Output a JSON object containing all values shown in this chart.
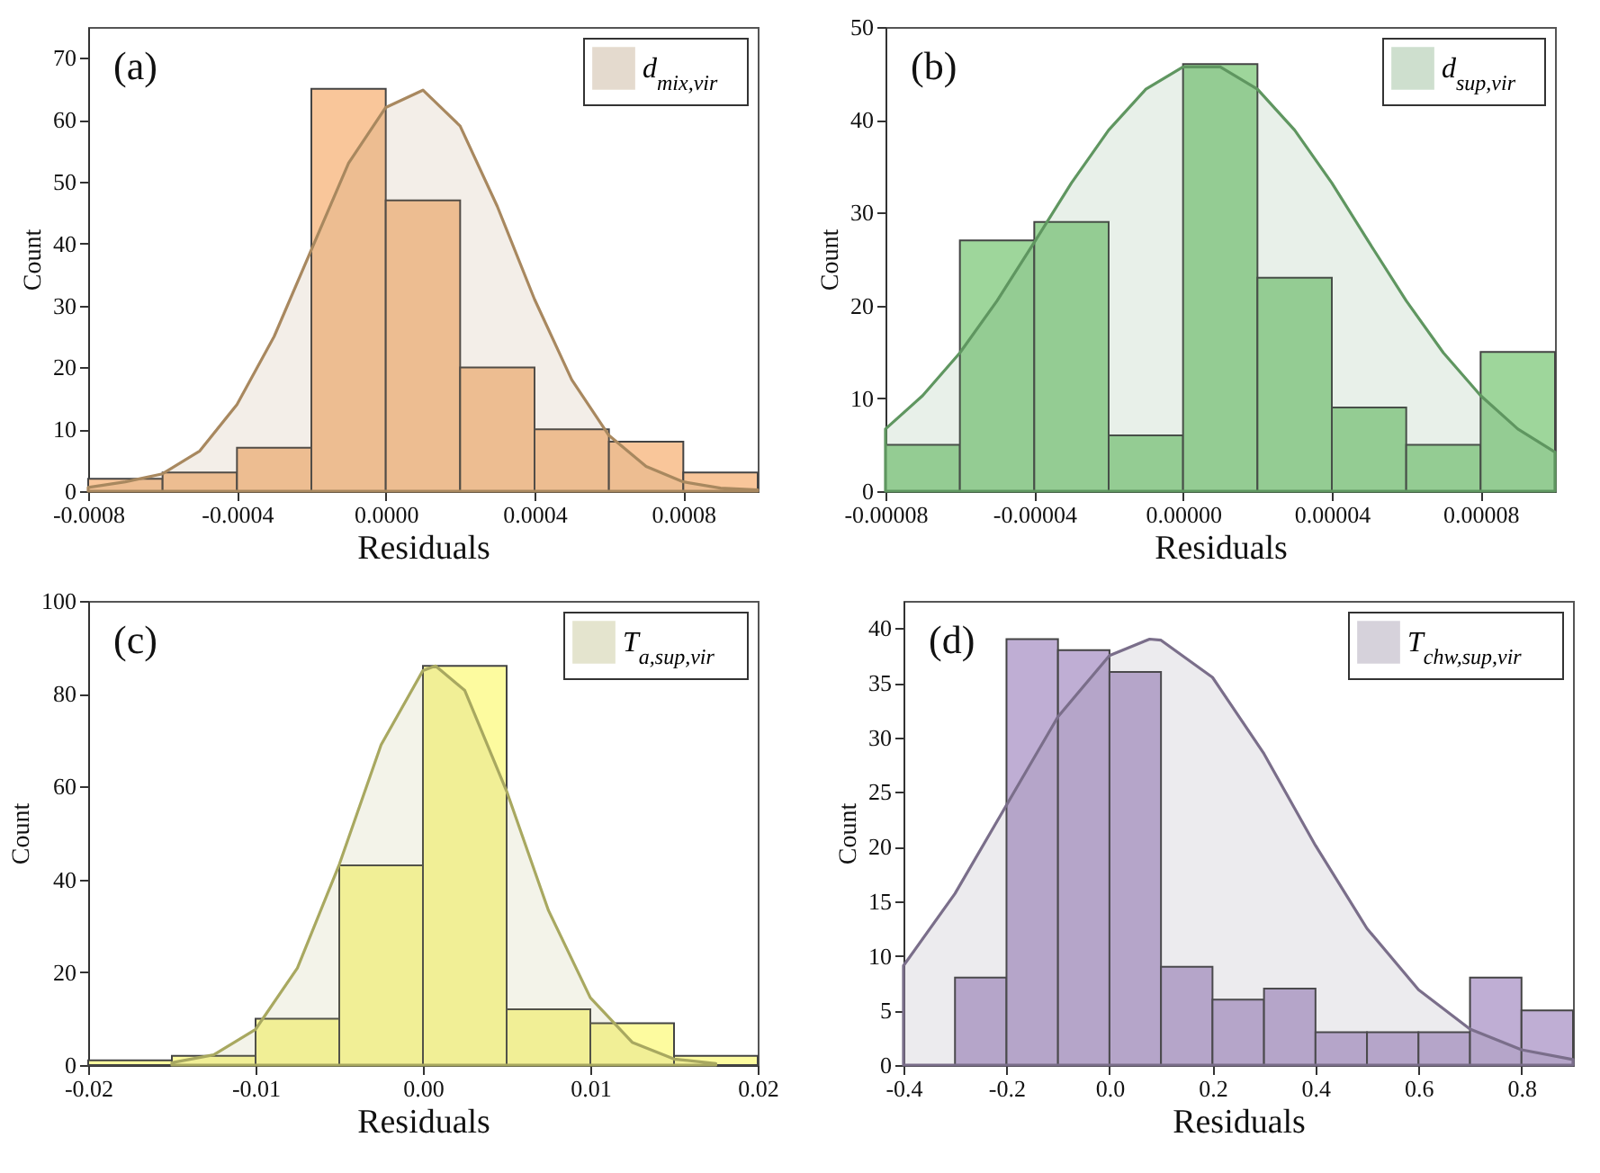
{
  "chart_data": [
    {
      "type": "histogram",
      "xlabel": "Residuals",
      "ylabel": "Count",
      "annotations": [
        "(a)"
      ],
      "legend": "top right",
      "bins": [
        -0.0008,
        -0.0006,
        -0.0004,
        -0.0002,
        0,
        0.0002,
        0.0004,
        0.0006,
        0.0008,
        0.001
      ],
      "series": [
        {
          "color": "#f9c69a",
          "values": [
            2,
            3,
            7,
            65,
            47,
            20,
            10,
            8,
            3
          ]
        },
        {
          "type": "area",
          "name": "d$_{mix,vir}$",
          "color": "#a8885f",
          "x": [
            -0.0008,
            -0.0007,
            -0.0006,
            -0.0005,
            -0.0004,
            -0.0003,
            -0.0002,
            -0.0001,
            0,
            0.0001,
            0.0002,
            0.0003,
            0.0004,
            0.0005,
            0.0006,
            0.0007,
            0.0008,
            0.0009,
            0.001
          ],
          "values": [
            0.6,
            1.5,
            2.8,
            6.5,
            14,
            25,
            39,
            53,
            62,
            64.8,
            59,
            46,
            31,
            18,
            9,
            4,
            1.5,
            0.5,
            0.2
          ]
        }
      ],
      "xlim": [
        -0.0008,
        0.001
      ],
      "xticks": [
        -0.0008,
        -0.0004,
        {
          "value": 0,
          "label": "0.0000"
        },
        0.0004,
        0.0008
      ],
      "ylim": [
        0,
        75
      ],
      "yticks": [
        0,
        10,
        20,
        30,
        40,
        50,
        60,
        70
      ]
    },
    {
      "type": "histogram",
      "xlabel": "Residuals",
      "ylabel": "Count",
      "annotations": [
        "(b)"
      ],
      "legend": "top right",
      "bins": [
        -8e-05,
        -6e-05,
        -4e-05,
        -2e-05,
        0,
        2e-05,
        4e-05,
        6e-05,
        8e-05,
        0.0001
      ],
      "series": [
        {
          "color": "#9ed69b",
          "values": [
            5,
            27,
            29,
            6,
            46,
            23,
            9,
            5,
            15
          ]
        },
        {
          "type": "area",
          "name": "d$_{sup,vir}$",
          "color": "#5f9660",
          "x": [
            -8e-05,
            -7e-05,
            -6e-05,
            -5e-05,
            -4e-05,
            -3e-05,
            -2e-05,
            -1e-05,
            0,
            1e-05,
            2e-05,
            3e-05,
            4e-05,
            5e-05,
            6e-05,
            7e-05,
            8e-05,
            9e-05,
            0.0001
          ],
          "values": [
            6.7,
            10.3,
            14.9,
            20.5,
            26.8,
            33.2,
            38.9,
            43.3,
            45.7,
            45.7,
            43.3,
            38.9,
            33.2,
            26.8,
            20.5,
            14.9,
            10.3,
            6.7,
            4.2
          ]
        }
      ],
      "xlim": [
        -8e-05,
        0.0001
      ],
      "xticks": [
        {
          "value": -8e-05,
          "label": "-0.00008"
        },
        {
          "value": -4e-05,
          "label": "-0.00004"
        },
        {
          "value": 0,
          "label": "0.00000"
        },
        {
          "value": 4e-05,
          "label": "0.00004"
        },
        {
          "value": 8e-05,
          "label": "0.00008"
        }
      ],
      "ylim": [
        0,
        50
      ],
      "yticks": [
        0,
        10,
        20,
        30,
        40,
        50
      ]
    },
    {
      "type": "histogram",
      "xlabel": "Residuals",
      "ylabel": "Count",
      "annotations": [
        "(c)"
      ],
      "legend": "top right",
      "bins": [
        -0.02,
        -0.015,
        -0.01,
        -0.005,
        0,
        0.005,
        0.01,
        0.015,
        0.02
      ],
      "series": [
        {
          "color": "#fdfb9f",
          "values": [
            1,
            2,
            10,
            43,
            86,
            12,
            9,
            2
          ]
        },
        {
          "type": "area",
          "name": "T$_{a,sup,vir}$",
          "color": "#a8a860",
          "x": [
            -0.015,
            -0.0125,
            -0.01,
            -0.0075,
            -0.005,
            -0.0025,
            0,
            0.00075,
            0.0025,
            0.005,
            0.0075,
            0.01,
            0.0125,
            0.015,
            0.0175
          ],
          "values": [
            0.5,
            2.2,
            7.7,
            20.9,
            43.2,
            69,
            85,
            86,
            80.7,
            59,
            33.3,
            14.5,
            4.9,
            1.3,
            0.3
          ]
        }
      ],
      "xlim": [
        -0.02,
        0.02
      ],
      "xticks": [
        -0.02,
        -0.01,
        {
          "value": 0,
          "label": "0.00"
        },
        0.01,
        0.02
      ],
      "ylim": [
        0,
        100
      ],
      "yticks": [
        0,
        20,
        40,
        60,
        80,
        100
      ]
    },
    {
      "type": "histogram",
      "xlabel": "Residuals",
      "ylabel": "Count",
      "annotations": [
        "(d)"
      ],
      "legend": "top right",
      "bins": [
        -0.3,
        -0.2,
        -0.1,
        0,
        0.1,
        0.2,
        0.3,
        0.4,
        0.5,
        0.6,
        0.7,
        0.8,
        0.9
      ],
      "series": [
        {
          "color": "#bfaed4",
          "values": [
            8,
            39,
            38,
            36,
            9,
            6,
            7,
            3,
            3,
            3,
            8,
            5
          ]
        },
        {
          "type": "area",
          "name": "T$_{chw,sup,vir}$",
          "color": "#7a6e8a",
          "x": [
            -0.4,
            -0.3,
            -0.2,
            -0.1,
            0,
            0.078,
            0.1,
            0.2,
            0.3,
            0.4,
            0.5,
            0.6,
            0.7,
            0.8,
            0.9
          ],
          "values": [
            9.1,
            15.7,
            23.8,
            31.9,
            37.5,
            39,
            38.9,
            35.5,
            28.5,
            20.1,
            12.5,
            6.9,
            3.3,
            1.4,
            0.5
          ]
        }
      ],
      "xlim": [
        -0.4,
        0.9
      ],
      "xticks": [
        -0.4,
        -0.2,
        {
          "value": 0,
          "label": "0.0"
        },
        0.2,
        0.4,
        0.6,
        0.8
      ],
      "ylim": [
        0,
        42.5
      ],
      "yticks": [
        0,
        5,
        10,
        15,
        20,
        25,
        30,
        35,
        40
      ]
    }
  ]
}
